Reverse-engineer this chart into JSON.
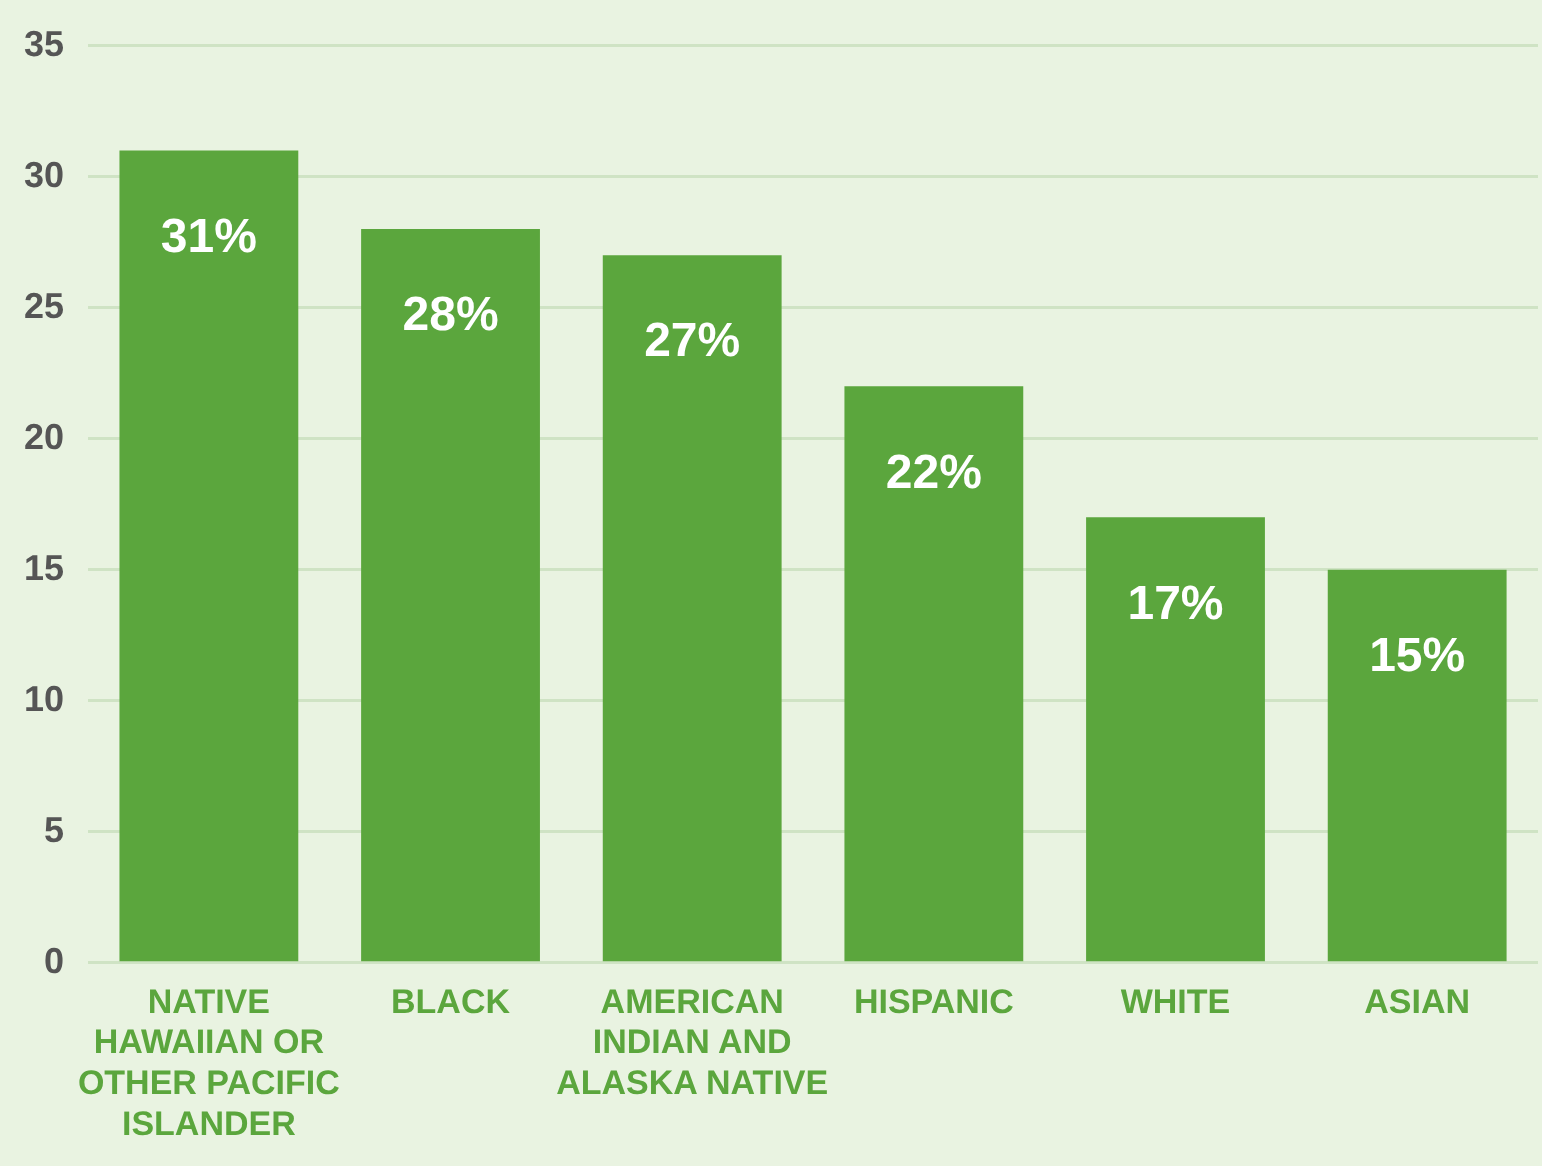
{
  "chart_data": {
    "type": "bar",
    "categories": [
      "NATIVE HAWAIIAN OR OTHER PACIFIC ISLANDER",
      "BLACK",
      "AMERICAN INDIAN AND ALASKA NATIVE",
      "HISPANIC",
      "WHITE",
      "ASIAN"
    ],
    "values": [
      31,
      28,
      27,
      22,
      17,
      15
    ],
    "value_labels": [
      "31%",
      "28%",
      "27%",
      "22%",
      "17%",
      "15%"
    ],
    "color": "#5ba63d",
    "ylim": [
      0,
      35
    ],
    "yticks": [
      0,
      5,
      10,
      15,
      20,
      25,
      30,
      35
    ],
    "grid": "y",
    "legend": false
  }
}
